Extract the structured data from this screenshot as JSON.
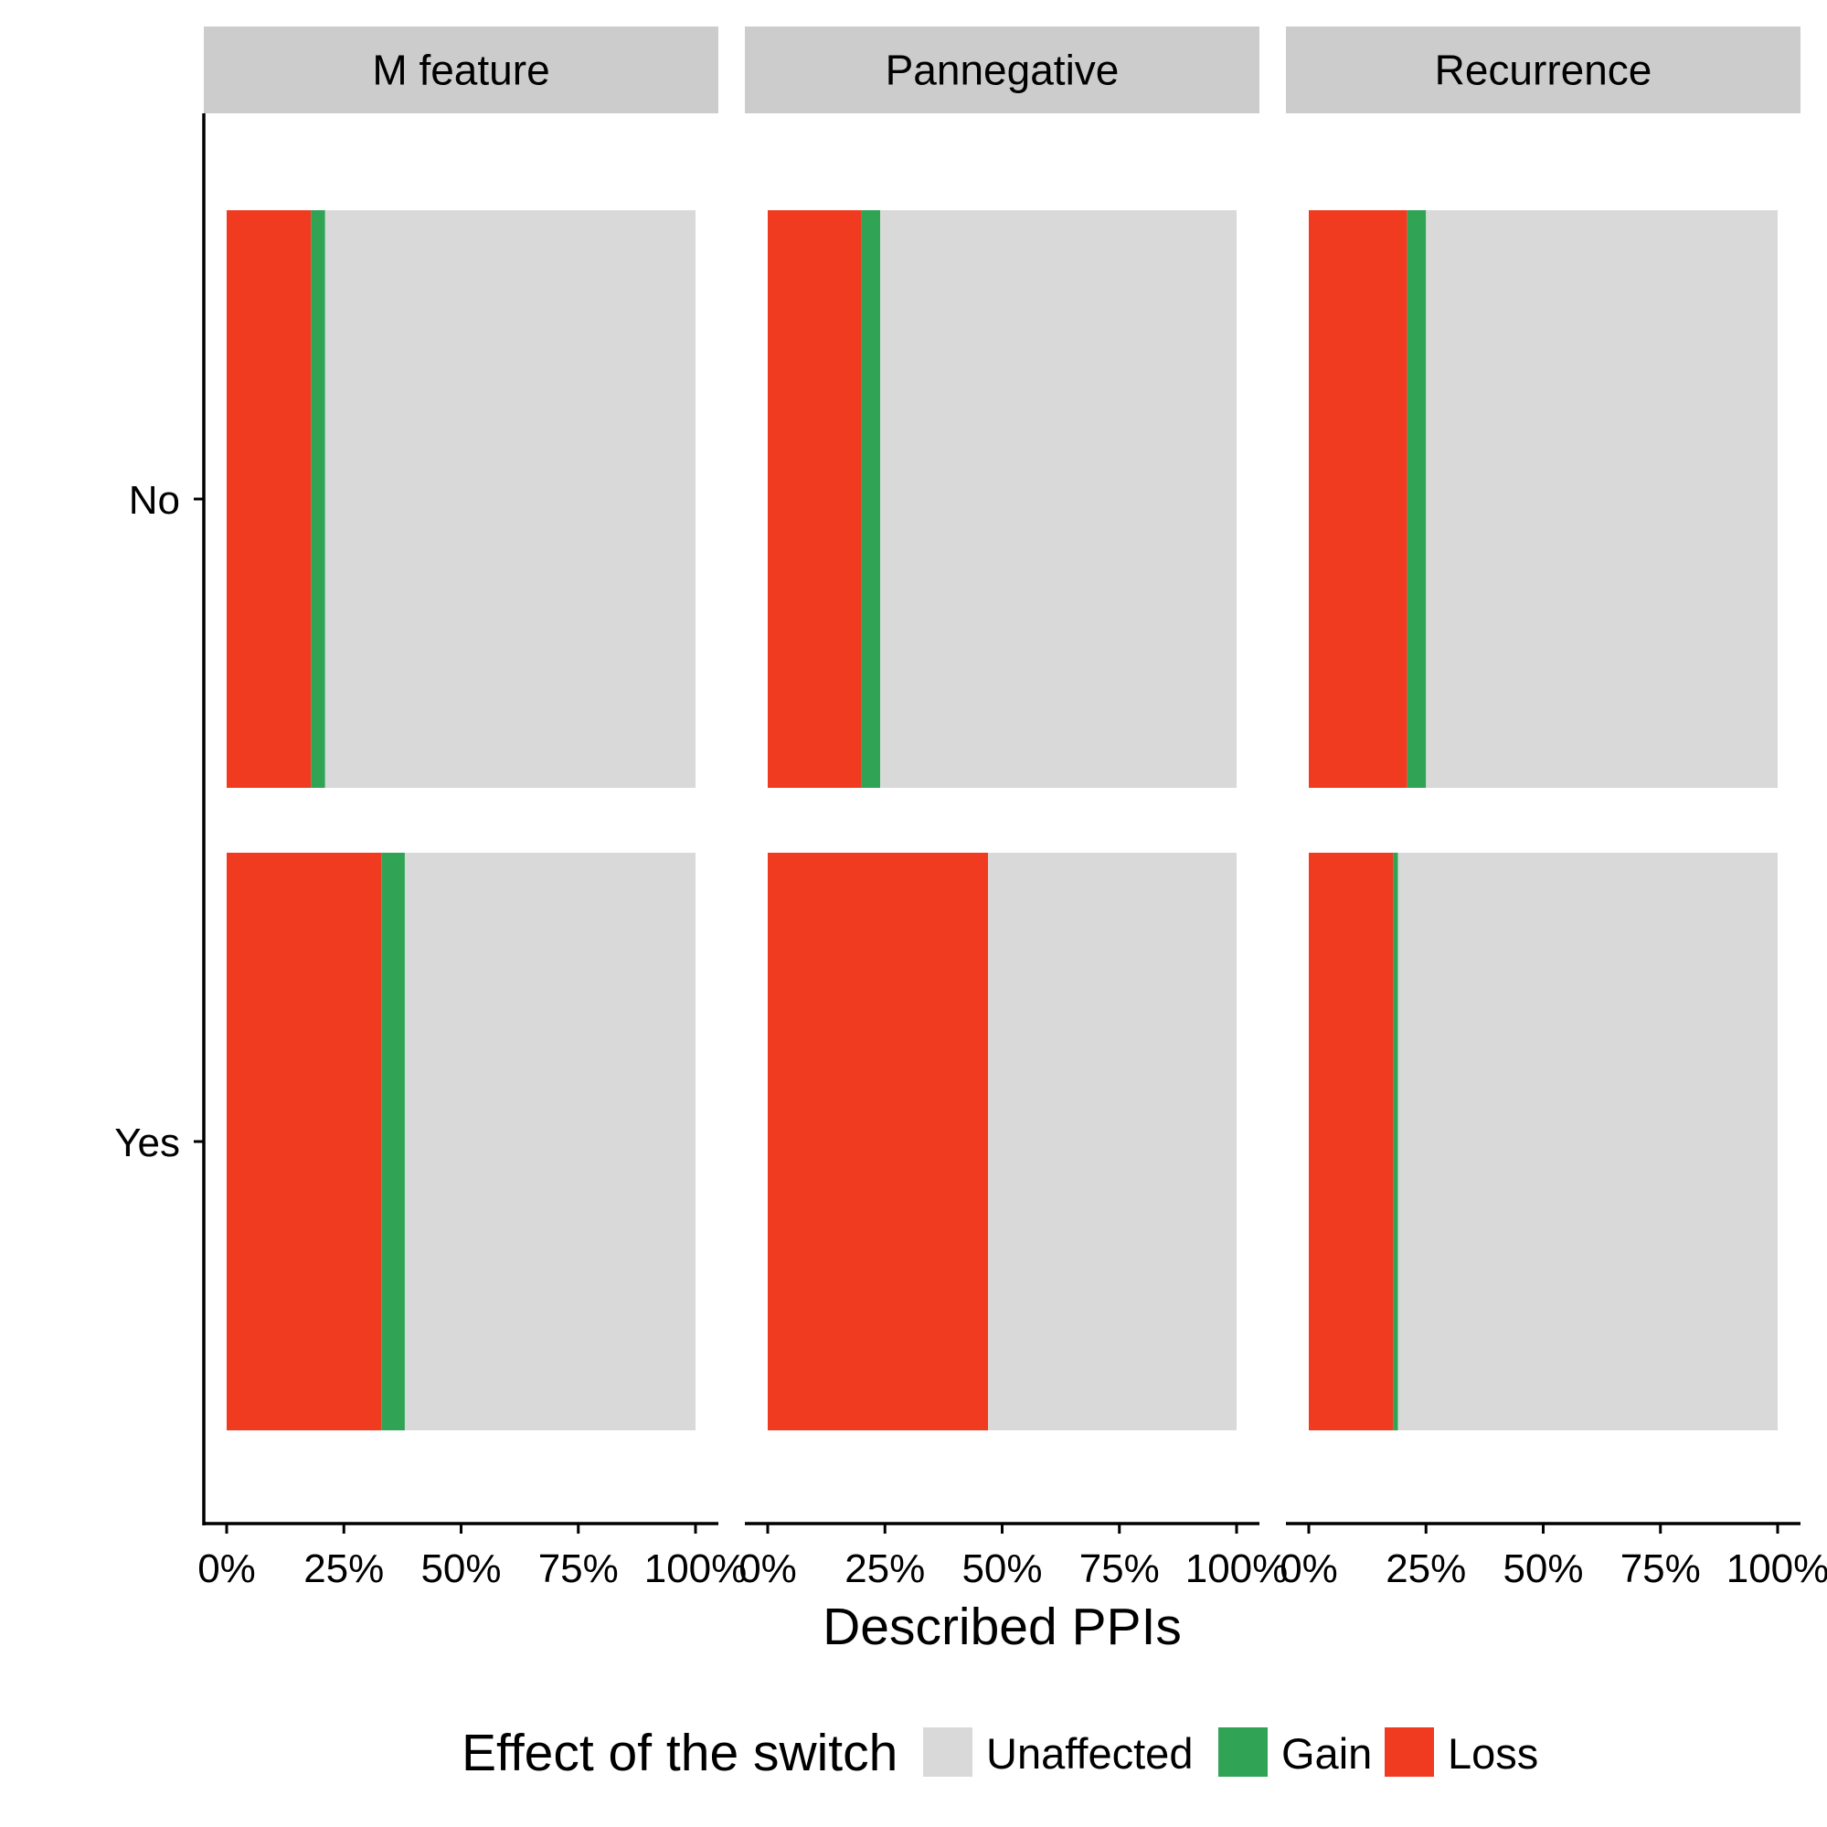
{
  "chart_data": {
    "type": "bar",
    "orientation": "horizontal",
    "stacked": true,
    "xlabel": "Described PPIs",
    "ylabel": "",
    "xlim": [
      0,
      1
    ],
    "x_ticks": [
      "0%",
      "25%",
      "50%",
      "75%",
      "100%"
    ],
    "y_categories": [
      "No",
      "Yes"
    ],
    "facets": [
      "M feature",
      "Pannegative",
      "Recurrence"
    ],
    "legend": {
      "title": "Effect of the switch",
      "position": "bottom",
      "entries": [
        {
          "label": "Unaffected",
          "color": "#d9d9d9"
        },
        {
          "label": "Gain",
          "color": "#31a354"
        },
        {
          "label": "Loss",
          "color": "#f03b20"
        }
      ]
    },
    "panels": [
      {
        "facet": "M feature",
        "bars": [
          {
            "category": "No",
            "loss": 0.18,
            "gain": 0.03,
            "unaffected": 0.79
          },
          {
            "category": "Yes",
            "loss": 0.33,
            "gain": 0.05,
            "unaffected": 0.62
          }
        ]
      },
      {
        "facet": "Pannegative",
        "bars": [
          {
            "category": "No",
            "loss": 0.2,
            "gain": 0.04,
            "unaffected": 0.76
          },
          {
            "category": "Yes",
            "loss": 0.47,
            "gain": 0.0,
            "unaffected": 0.53
          }
        ]
      },
      {
        "facet": "Recurrence",
        "bars": [
          {
            "category": "No",
            "loss": 0.21,
            "gain": 0.04,
            "unaffected": 0.75
          },
          {
            "category": "Yes",
            "loss": 0.18,
            "gain": 0.01,
            "unaffected": 0.81
          }
        ]
      }
    ],
    "grid": false
  }
}
